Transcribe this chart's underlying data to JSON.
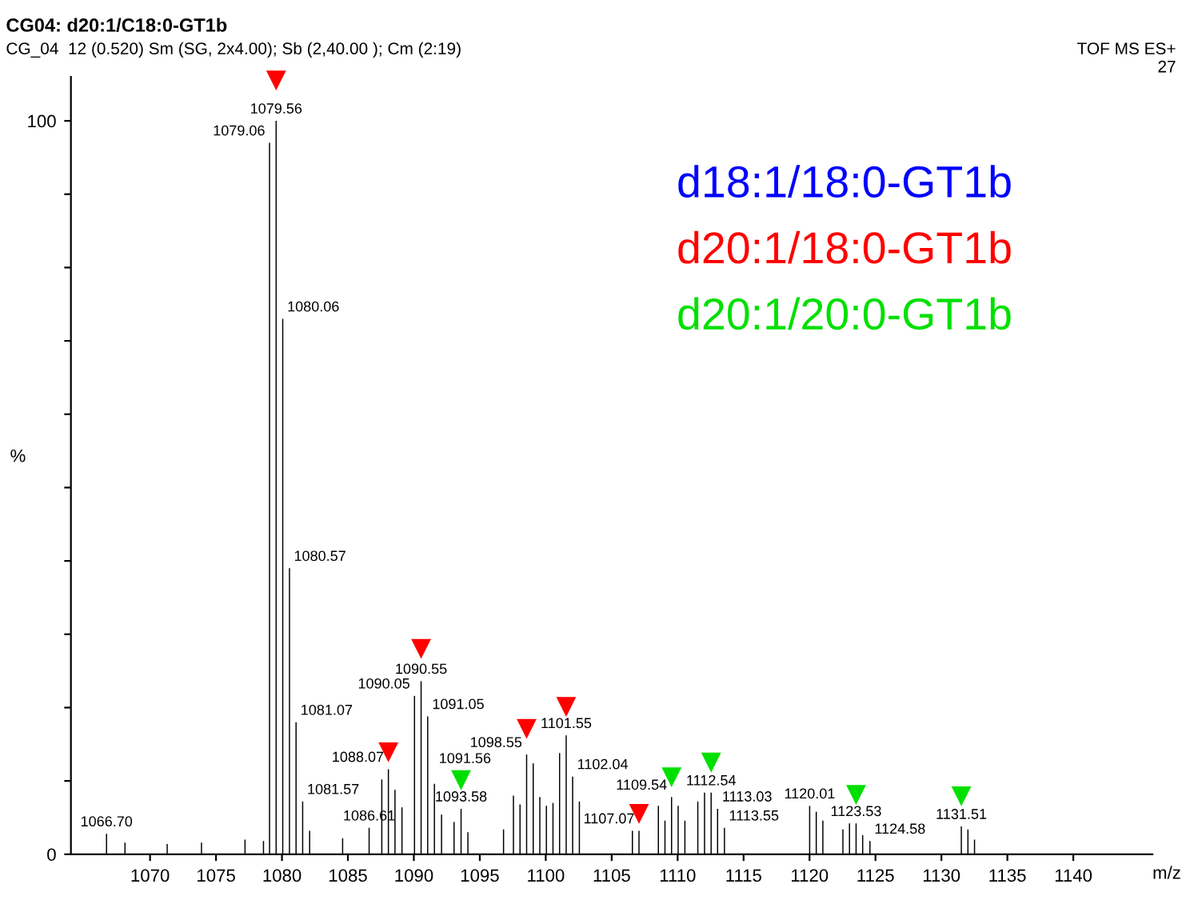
{
  "chart_data": {
    "type": "bar",
    "title": "CG04: d20:1/C18:0-GT1b",
    "subtitle": "CG_04  12 (0.520) Sm (SG, 2x4.00); Sb (2,40.00 ); Cm (2:19)",
    "annotations": [
      "TOF MS ES+",
      "27",
      {
        "text": "1066.70",
        "x": 1066.7,
        "y": 2.8
      },
      {
        "text": "1079.06",
        "x": 1079.06,
        "y": 97
      },
      {
        "text": "1079.56",
        "x": 1079.56,
        "y": 100
      },
      {
        "text": "1080.06",
        "x": 1080.06,
        "y": 73
      },
      {
        "text": "1080.57",
        "x": 1080.57,
        "y": 39
      },
      {
        "text": "1081.07",
        "x": 1081.07,
        "y": 18
      },
      {
        "text": "1081.57",
        "x": 1081.57,
        "y": 7.2
      },
      {
        "text": "1086.61",
        "x": 1086.61,
        "y": 3.6
      },
      {
        "text": "1088.07",
        "x": 1088.07,
        "y": 11.6
      },
      {
        "text": "1090.05",
        "x": 1090.05,
        "y": 21.6
      },
      {
        "text": "1090.55",
        "x": 1090.55,
        "y": 23.6
      },
      {
        "text": "1091.05",
        "x": 1091.05,
        "y": 18.8
      },
      {
        "text": "1091.56",
        "x": 1091.56,
        "y": 9.6
      },
      {
        "text": "1093.58",
        "x": 1093.58,
        "y": 6.2
      },
      {
        "text": "1098.55",
        "x": 1098.55,
        "y": 13.6
      },
      {
        "text": "1101.55",
        "x": 1101.55,
        "y": 16.2
      },
      {
        "text": "1102.04",
        "x": 1102.04,
        "y": 10.6
      },
      {
        "text": "1107.07",
        "x": 1107.07,
        "y": 3.2
      },
      {
        "text": "1109.54",
        "x": 1109.54,
        "y": 7.8
      },
      {
        "text": "1112.54",
        "x": 1112.54,
        "y": 8.4
      },
      {
        "text": "1113.03",
        "x": 1113.03,
        "y": 6.2
      },
      {
        "text": "1113.55",
        "x": 1113.55,
        "y": 3.6
      },
      {
        "text": "1120.01",
        "x": 1120.01,
        "y": 6.6
      },
      {
        "text": "1123.53",
        "x": 1123.53,
        "y": 4.2
      },
      {
        "text": "1124.58",
        "x": 1124.58,
        "y": 1.8
      },
      {
        "text": "1131.51",
        "x": 1131.51,
        "y": 3.8
      }
    ],
    "xlabel": "m/z",
    "ylabel": "%",
    "xlim": [
      1064,
      1146
    ],
    "xticks": [
      1070,
      1075,
      1080,
      1085,
      1090,
      1095,
      1100,
      1105,
      1110,
      1115,
      1120,
      1125,
      1130,
      1135,
      1140
    ],
    "ylim": [
      0,
      106
    ],
    "yticks": [
      0,
      {
        "value": 10,
        "label": null
      },
      {
        "value": 20,
        "label": null
      },
      {
        "value": 30,
        "label": null
      },
      {
        "value": 40,
        "label": null
      },
      {
        "value": 50,
        "label": null
      },
      {
        "value": 60,
        "label": null
      },
      {
        "value": 70,
        "label": null
      },
      {
        "value": 80,
        "label": null
      },
      {
        "value": 90,
        "label": null
      },
      100
    ],
    "series": [
      {
        "color": "#000000",
        "x": [
          1066.7,
          1068.1,
          1071.3,
          1073.9,
          1077.2,
          1078.6,
          1079.06,
          1079.56,
          1080.06,
          1080.57,
          1081.07,
          1081.57,
          1082.1,
          1084.6,
          1086.61,
          1087.57,
          1088.07,
          1088.57,
          1089.1,
          1090.05,
          1090.55,
          1091.05,
          1091.56,
          1092.1,
          1093.05,
          1093.58,
          1094.1,
          1096.8,
          1097.55,
          1098.05,
          1098.55,
          1099.05,
          1099.55,
          1100.05,
          1100.55,
          1101.05,
          1101.55,
          1102.04,
          1102.55,
          1106.57,
          1107.07,
          1108.54,
          1109.04,
          1109.54,
          1110.04,
          1110.55,
          1111.53,
          1112.04,
          1112.54,
          1113.03,
          1113.55,
          1120.01,
          1120.51,
          1121.01,
          1122.53,
          1123.03,
          1123.53,
          1124.03,
          1124.58,
          1131.51,
          1132.01,
          1132.51
        ],
        "values": [
          2.8,
          1.6,
          1.4,
          1.6,
          2.0,
          1.8,
          97,
          100,
          73,
          39,
          18,
          7.2,
          3.2,
          2.2,
          3.6,
          10.2,
          11.6,
          8.8,
          6.4,
          21.6,
          23.6,
          18.8,
          9.6,
          5.4,
          4.4,
          6.2,
          3.0,
          3.4,
          8.0,
          6.8,
          13.6,
          12.4,
          7.8,
          6.6,
          7.0,
          13.8,
          16.2,
          10.6,
          7.2,
          3.2,
          3.2,
          6.6,
          4.6,
          7.8,
          6.6,
          4.6,
          7.2,
          8.4,
          8.4,
          6.2,
          3.6,
          6.6,
          5.8,
          4.6,
          3.4,
          4.2,
          4.2,
          2.6,
          1.8,
          3.8,
          3.4,
          2.0
        ]
      },
      {
        "type": "scatter",
        "name": "d18:1/18:0-GT1b",
        "color": "#0000ff",
        "marker": "triangle"
      },
      {
        "type": "scatter",
        "name": "d20:1/18:0-GT1b",
        "color": "#ff0000",
        "marker": "triangle",
        "x": [
          1079.56,
          1088.07,
          1090.55,
          1098.55,
          1101.55,
          1107.07
        ],
        "values": [
          105.5,
          13.9,
          28.0,
          17.1,
          20.1,
          5.5
        ]
      },
      {
        "type": "scatter",
        "name": "d20:1/20:0-GT1b",
        "color": "#00e000",
        "marker": "triangle",
        "x": [
          1093.58,
          1109.54,
          1112.54,
          1123.53,
          1131.51
        ],
        "values": [
          10.1,
          10.5,
          12.5,
          8.1,
          7.9
        ]
      }
    ]
  }
}
